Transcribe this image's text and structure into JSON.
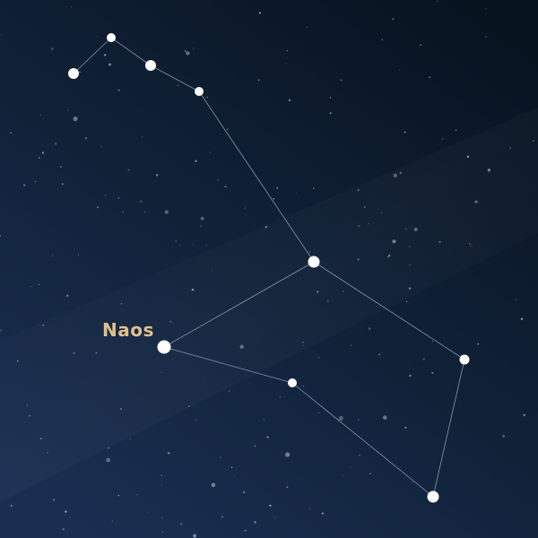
{
  "colors": {
    "sky_top": "#0a1420",
    "sky_bottom": "#1a2c4e",
    "constellation_line": "#9fb3c2",
    "star": "#ffffff",
    "label": "#e2c08d"
  },
  "label": {
    "text": "Naos"
  }
}
